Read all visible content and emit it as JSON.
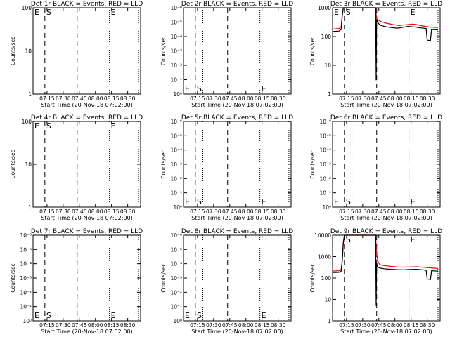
{
  "chart_data": [
    {
      "type": "line",
      "title": "Det 1r BLACK = Events, RED = LLD",
      "xlabel": "Start Time (20-Nov-18 07:02:00)",
      "ylabel": "Counts/sec",
      "scale": "log",
      "yticks": [
        "1",
        "10",
        "100"
      ],
      "ylim": [
        1,
        100
      ],
      "xticks": [
        "07:15",
        "07:30",
        "07:45",
        "08:00",
        "08:15",
        "08:30"
      ],
      "xlim": [
        "07:02",
        "08:42"
      ],
      "markers": [
        {
          "label": "E",
          "at": "07:02"
        },
        {
          "label": "S",
          "at": "07:13"
        },
        {
          "label": "E",
          "at": "08:13"
        }
      ],
      "dashed_lines": [
        "07:13",
        "07:43"
      ],
      "dotted_lines": [
        "08:13",
        "08:40"
      ],
      "series": []
    },
    {
      "type": "line",
      "title": "Det 2r BLACK = Events, RED = LLD",
      "xlabel": "Start Time (20-Nov-18 07:02:00)",
      "ylabel": "Counts/sec",
      "scale": "log",
      "yticks": [
        "10⁰",
        "10⁻¹",
        "10⁻²",
        "10⁻³",
        "10⁻⁴",
        "10⁻⁵",
        "10⁻⁶"
      ],
      "ylim": [
        1,
        1e-06
      ],
      "xticks": [
        "07:15",
        "07:30",
        "07:45",
        "08:00",
        "08:15",
        "08:30"
      ],
      "xlim": [
        "07:02",
        "08:42"
      ],
      "markers": [
        {
          "label": "E",
          "at": "07:02"
        },
        {
          "label": "S",
          "at": "07:13"
        },
        {
          "label": "E",
          "at": "08:13"
        }
      ],
      "dashed_lines": [
        "07:13",
        "07:43"
      ],
      "dotted_lines": [
        "07:20",
        "08:13",
        "08:40"
      ],
      "series": []
    },
    {
      "type": "line",
      "title": "Det 3r BLACK = Events, RED = LLD",
      "xlabel": "Start Time (20-Nov-18 07:02:00)",
      "ylabel": "Counts/sec",
      "scale": "log",
      "yticks": [
        "1",
        "10",
        "100",
        "1000"
      ],
      "ylim": [
        1,
        1000
      ],
      "xticks": [
        "07:15",
        "07:30",
        "07:45",
        "08:00",
        "08:15",
        "08:30"
      ],
      "xlim": [
        "07:02",
        "08:42"
      ],
      "markers": [
        {
          "label": "E",
          "at": "07:02"
        },
        {
          "label": "S",
          "at": "07:13"
        },
        {
          "label": "E",
          "at": "08:13"
        }
      ],
      "dashed_lines": [
        "07:13",
        "07:43"
      ],
      "dotted_lines": [
        "07:20",
        "08:13",
        "08:40"
      ],
      "series": [
        {
          "color": "#ff0000",
          "x": [
            "07:02",
            "07:05",
            "07:08",
            "07:10",
            "07:11",
            "07:12",
            "07:13",
            "07:14",
            "07:15",
            "07:40",
            "07:41",
            "07:42",
            "07:43",
            "07:45",
            "07:48",
            "07:52",
            "07:58",
            "08:04",
            "08:10",
            "08:16",
            "08:20",
            "08:24",
            "08:28",
            "08:34",
            "08:40"
          ],
          "y": [
            180,
            185,
            190,
            220,
            600,
            1000,
            1000,
            1000,
            1000,
            1000,
            1000,
            1000,
            420,
            360,
            320,
            290,
            260,
            240,
            255,
            270,
            260,
            240,
            225,
            210,
            205
          ]
        },
        {
          "color": "#000000",
          "x": [
            "07:02",
            "07:05",
            "07:08",
            "07:10",
            "07:11",
            "07:12",
            "07:13",
            "07:14",
            "07:15",
            "07:41",
            "07:42",
            "07:42.5",
            "07:43",
            "07:44",
            "07:46",
            "07:50",
            "07:56",
            "08:02",
            "08:08",
            "08:12",
            "08:18",
            "08:24",
            "08:29",
            "08:30",
            "08:33",
            "08:34",
            "08:40"
          ],
          "y": [
            150,
            152,
            155,
            175,
            500,
            1000,
            1000,
            1000,
            1000,
            1000,
            1000,
            3,
            380,
            310,
            250,
            225,
            205,
            195,
            210,
            225,
            215,
            200,
            190,
            75,
            72,
            175,
            170
          ]
        }
      ]
    },
    {
      "type": "line",
      "title": "Det 4r BLACK = Events, RED = LLD",
      "xlabel": "Start Time (20-Nov-18 07:02:00)",
      "ylabel": "Counts/sec",
      "scale": "log",
      "yticks": [
        "1",
        "10",
        "100"
      ],
      "ylim": [
        1,
        100
      ],
      "xticks": [
        "07:15",
        "07:30",
        "07:45",
        "08:00",
        "08:15",
        "08:30"
      ],
      "xlim": [
        "07:02",
        "08:42"
      ],
      "markers": [
        {
          "label": "E",
          "at": "07:02"
        },
        {
          "label": "S",
          "at": "07:13"
        },
        {
          "label": "E",
          "at": "08:13"
        }
      ],
      "dashed_lines": [
        "07:13",
        "07:43"
      ],
      "dotted_lines": [
        "08:13",
        "08:40"
      ],
      "series": []
    },
    {
      "type": "line",
      "title": "Det 5r BLACK = Events, RED = LLD",
      "xlabel": "Start Time (20-Nov-18 07:02:00)",
      "ylabel": "Counts/sec",
      "scale": "log",
      "yticks": [
        "10⁰",
        "10⁻¹",
        "10⁻²",
        "10⁻³",
        "10⁻⁴",
        "10⁻⁵",
        "10⁻⁶"
      ],
      "ylim": [
        1,
        1e-06
      ],
      "xticks": [
        "07:15",
        "07:30",
        "07:45",
        "08:00",
        "08:15",
        "08:30"
      ],
      "xlim": [
        "07:02",
        "08:42"
      ],
      "markers": [
        {
          "label": "E",
          "at": "07:02"
        },
        {
          "label": "S",
          "at": "07:13"
        },
        {
          "label": "E",
          "at": "08:13"
        }
      ],
      "dashed_lines": [
        "07:13",
        "07:43"
      ],
      "dotted_lines": [
        "07:20",
        "08:13",
        "08:40"
      ],
      "series": []
    },
    {
      "type": "line",
      "title": "Det 6r BLACK = Events, RED = LLD",
      "xlabel": "Start Time (20-Nov-18 07:02:00)",
      "ylabel": "Counts/sec",
      "scale": "log",
      "yticks": [
        "10⁰",
        "10⁻¹",
        "10⁻²",
        "10⁻³",
        "10⁻⁴",
        "10⁻⁵",
        "10⁻⁶"
      ],
      "ylim": [
        1,
        1e-06
      ],
      "xticks": [
        "07:15",
        "07:30",
        "07:45",
        "08:00",
        "08:15",
        "08:30"
      ],
      "xlim": [
        "07:02",
        "08:42"
      ],
      "markers": [
        {
          "label": "E",
          "at": "07:02"
        },
        {
          "label": "S",
          "at": "07:13"
        },
        {
          "label": "E",
          "at": "08:13"
        }
      ],
      "dashed_lines": [
        "07:13",
        "07:43"
      ],
      "dotted_lines": [
        "07:20",
        "08:13",
        "08:40"
      ],
      "series": []
    },
    {
      "type": "line",
      "title": "Det 7r BLACK = Events, RED = LLD",
      "xlabel": "Start Time (20-Nov-18 07:02:00)",
      "ylabel": "Counts/sec",
      "scale": "log",
      "yticks": [
        "10⁰",
        "10⁻¹",
        "10⁻²",
        "10⁻³",
        "10⁻⁴",
        "10⁻⁵",
        "10⁻⁶"
      ],
      "ylim": [
        1,
        1e-06
      ],
      "xticks": [
        "07:15",
        "07:30",
        "07:45",
        "08:00",
        "08:15",
        "08:30"
      ],
      "xlim": [
        "07:02",
        "08:42"
      ],
      "markers": [
        {
          "label": "E",
          "at": "07:02"
        },
        {
          "label": "S",
          "at": "07:13"
        },
        {
          "label": "E",
          "at": "08:13"
        }
      ],
      "dashed_lines": [
        "07:13",
        "07:43"
      ],
      "dotted_lines": [
        "08:13",
        "08:40"
      ],
      "series": []
    },
    {
      "type": "line",
      "title": "Det 8r BLACK = Events, RED = LLD",
      "xlabel": "Start Time (20-Nov-18 07:02:00)",
      "ylabel": "Counts/sec",
      "scale": "log",
      "yticks": [
        "10⁰",
        "10⁻¹",
        "10⁻²",
        "10⁻³",
        "10⁻⁴",
        "10⁻⁵",
        "10⁻⁶"
      ],
      "ylim": [
        1,
        1e-06
      ],
      "xticks": [
        "07:15",
        "07:30",
        "07:45",
        "08:00",
        "08:15",
        "08:30"
      ],
      "xlim": [
        "07:02",
        "08:42"
      ],
      "markers": [
        {
          "label": "E",
          "at": "07:02"
        },
        {
          "label": "S",
          "at": "07:13"
        },
        {
          "label": "E",
          "at": "08:13"
        }
      ],
      "dashed_lines": [
        "07:13",
        "07:43"
      ],
      "dotted_lines": [
        "07:20",
        "08:13",
        "08:40"
      ],
      "series": []
    },
    {
      "type": "line",
      "title": "Det 9r BLACK = Events, RED = LLD",
      "xlabel": "Start Time (20-Nov-18 07:02:00)",
      "ylabel": "Counts/sec",
      "scale": "log",
      "yticks": [
        "1",
        "10",
        "100",
        "1000",
        "10000"
      ],
      "ylim": [
        1,
        10000
      ],
      "xticks": [
        "07:15",
        "07:30",
        "07:45",
        "08:00",
        "08:15",
        "08:30"
      ],
      "xlim": [
        "07:02",
        "08:42"
      ],
      "markers": [
        {
          "label": "S",
          "at": "07:13"
        },
        {
          "label": "E",
          "at": "08:13"
        }
      ],
      "dashed_lines": [
        "07:13",
        "07:43"
      ],
      "dotted_lines": [
        "07:20",
        "08:13",
        "08:40"
      ],
      "series": [
        {
          "color": "#ff0000",
          "x": [
            "07:02",
            "07:05",
            "07:08",
            "07:10",
            "07:11",
            "07:12",
            "07:13",
            "07:14",
            "07:40",
            "07:41",
            "07:42",
            "07:43",
            "07:44",
            "07:46",
            "07:50",
            "07:56",
            "08:02",
            "08:08",
            "08:14",
            "08:20",
            "08:26",
            "08:32",
            "08:40"
          ],
          "y": [
            210,
            215,
            220,
            250,
            700,
            5000,
            10000,
            10000,
            10000,
            10000,
            10000,
            1500,
            600,
            420,
            380,
            350,
            330,
            320,
            330,
            335,
            320,
            300,
            280
          ]
        },
        {
          "color": "#000000",
          "x": [
            "07:02",
            "07:05",
            "07:08",
            "07:10",
            "07:11",
            "07:12",
            "07:13",
            "07:14",
            "07:41",
            "07:42",
            "07:42.5",
            "07:43",
            "07:44",
            "07:46",
            "07:50",
            "07:56",
            "08:02",
            "08:08",
            "08:14",
            "08:20",
            "08:26",
            "08:29",
            "08:30",
            "08:33",
            "08:34",
            "08:40"
          ],
          "y": [
            180,
            182,
            185,
            210,
            600,
            4000,
            10000,
            10000,
            10000,
            10000,
            5,
            500,
            320,
            290,
            270,
            255,
            245,
            240,
            250,
            255,
            240,
            230,
            90,
            85,
            220,
            210
          ]
        }
      ]
    }
  ]
}
